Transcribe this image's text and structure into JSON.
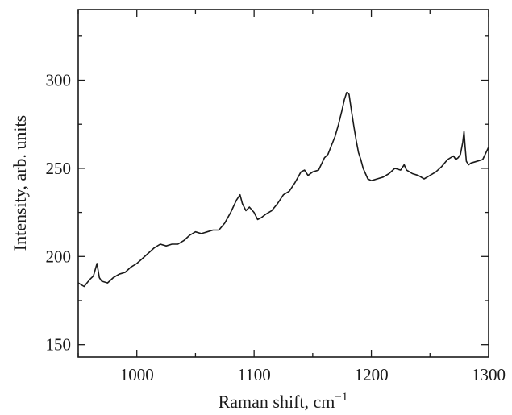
{
  "chart_data": {
    "type": "line",
    "title": "",
    "xlabel": "Raman shift, cm",
    "xlabel_superscript": "−1",
    "ylabel": "Intensity, arb. units",
    "xlim": [
      950,
      1300
    ],
    "ylim": [
      143,
      340
    ],
    "xticks": [
      1000,
      1100,
      1200,
      1300
    ],
    "yticks": [
      150,
      200,
      250,
      300
    ],
    "xminor": [
      950,
      1050,
      1150,
      1250
    ],
    "yminor": [
      175,
      225,
      275,
      325
    ],
    "xtick_labels": [
      "1000",
      "1100",
      "1200",
      "1300"
    ],
    "ytick_labels": [
      "150",
      "200",
      "250",
      "300"
    ],
    "grid": false,
    "legend": "none",
    "series": [
      {
        "x": [
          950,
          955,
          960,
          963,
          966,
          968,
          970,
          975,
          980,
          985,
          990,
          995,
          1000,
          1005,
          1010,
          1015,
          1020,
          1025,
          1030,
          1035,
          1040,
          1045,
          1050,
          1055,
          1060,
          1065,
          1070,
          1075,
          1080,
          1085,
          1088,
          1090,
          1093,
          1096,
          1100,
          1103,
          1106,
          1110,
          1115,
          1120,
          1125,
          1130,
          1135,
          1140,
          1143,
          1146,
          1150,
          1155,
          1160,
          1163,
          1166,
          1169,
          1172,
          1175,
          1177,
          1179,
          1181,
          1183,
          1185,
          1187,
          1189,
          1191,
          1193,
          1195,
          1197,
          1200,
          1205,
          1210,
          1215,
          1220,
          1225,
          1228,
          1230,
          1235,
          1240,
          1245,
          1250,
          1255,
          1260,
          1265,
          1270,
          1272,
          1274,
          1276,
          1278,
          1279,
          1280,
          1281,
          1283,
          1285,
          1290,
          1295,
          1300
        ],
        "y": [
          185,
          183,
          187,
          189,
          196,
          188,
          186,
          185,
          188,
          190,
          191,
          194,
          196,
          199,
          202,
          205,
          207,
          206,
          207,
          207,
          209,
          212,
          214,
          213,
          214,
          215,
          215,
          219,
          225,
          232,
          235,
          230,
          226,
          228,
          225,
          221,
          222,
          224,
          226,
          230,
          235,
          237,
          242,
          248,
          249,
          246,
          248,
          249,
          256,
          258,
          263,
          268,
          275,
          283,
          289,
          293,
          292,
          283,
          274,
          266,
          259,
          255,
          250,
          247,
          244,
          243,
          244,
          245,
          247,
          250,
          249,
          252,
          249,
          247,
          246,
          244,
          246,
          248,
          251,
          255,
          257,
          255,
          256,
          258,
          265,
          271,
          262,
          254,
          252,
          253,
          254,
          255,
          262
        ]
      }
    ]
  }
}
